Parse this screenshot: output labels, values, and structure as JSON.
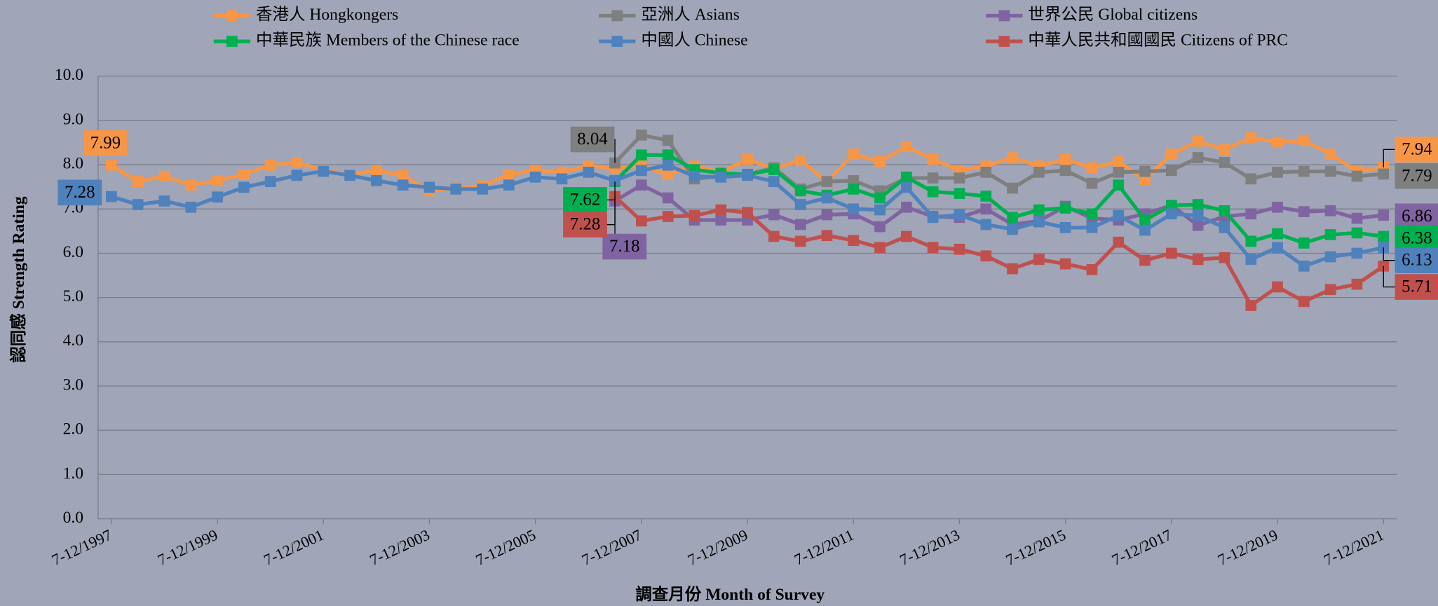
{
  "chart_data": {
    "type": "line",
    "x_label": "調查月份 Month of Survey",
    "y_label": "認同感 Strength Rating",
    "categories": [
      "7-12/1997",
      null,
      null,
      null,
      "7-12/1999",
      null,
      null,
      null,
      "7-12/2001",
      null,
      null,
      null,
      "7-12/2003",
      null,
      null,
      null,
      "7-12/2005",
      null,
      null,
      null,
      "7-12/2007",
      null,
      null,
      null,
      "7-12/2009",
      null,
      null,
      null,
      "7-12/2011",
      null,
      null,
      null,
      "7-12/2013",
      null,
      null,
      null,
      "7-12/2015",
      null,
      null,
      null,
      "7-12/2017",
      null,
      null,
      null,
      "7-12/2019",
      null,
      null,
      null,
      "7-12/2021"
    ],
    "ylim": [
      0,
      10
    ],
    "yticks": [
      {
        "value": 0,
        "label": "0.0"
      },
      {
        "value": 1,
        "label": "1.0"
      },
      {
        "value": 2,
        "label": "2.0"
      },
      {
        "value": 3,
        "label": "3.0"
      },
      {
        "value": 4,
        "label": "4.0"
      },
      {
        "value": 5,
        "label": "5.0"
      },
      {
        "value": 6,
        "label": "6.0"
      },
      {
        "value": 7,
        "label": "7.0"
      },
      {
        "value": 8,
        "label": "8.0"
      },
      {
        "value": 9,
        "label": "9.0"
      },
      {
        "value": 10,
        "label": "10.0"
      }
    ],
    "grid": true,
    "series": [
      {
        "name": "香港人 Hongkongers",
        "color": "#f79646",
        "values": [
          7.99,
          7.62,
          7.74,
          7.54,
          7.64,
          7.78,
          7.99,
          8.05,
          7.87,
          7.78,
          7.87,
          7.76,
          7.41,
          7.47,
          7.52,
          7.78,
          7.87,
          7.83,
          7.97,
          7.93,
          7.97,
          7.78,
          7.97,
          7.83,
          8.12,
          7.91,
          8.1,
          7.62,
          8.24,
          8.07,
          8.41,
          8.12,
          7.87,
          7.97,
          8.16,
          7.97,
          8.12,
          7.93,
          8.07,
          7.66,
          8.24,
          8.53,
          8.34,
          8.61,
          8.51,
          8.55,
          8.24,
          7.85,
          7.94
        ],
        "value_labels": [
          "7.99",
          null,
          null,
          null,
          null,
          null,
          null,
          null,
          null,
          null,
          null,
          null,
          null,
          null,
          null,
          null,
          null,
          null,
          null,
          null,
          null,
          null,
          null,
          null,
          null,
          null,
          null,
          null,
          null,
          null,
          null,
          null,
          null,
          null,
          null,
          null,
          null,
          null,
          null,
          null,
          null,
          null,
          null,
          null,
          null,
          null,
          null,
          null,
          "7.94"
        ]
      },
      {
        "name": "亞洲人 Asians",
        "color": "#7f7f7f",
        "values": [
          null,
          null,
          null,
          null,
          null,
          null,
          null,
          null,
          null,
          null,
          null,
          null,
          null,
          null,
          null,
          null,
          null,
          null,
          null,
          8.04,
          8.67,
          8.55,
          7.68,
          7.74,
          7.78,
          7.93,
          7.45,
          7.62,
          7.64,
          7.41,
          7.7,
          7.7,
          7.7,
          7.83,
          7.47,
          7.83,
          7.87,
          7.58,
          7.83,
          7.85,
          7.87,
          8.16,
          8.05,
          7.68,
          7.83,
          7.85,
          7.85,
          7.74,
          7.79
        ],
        "value_labels": [
          null,
          null,
          null,
          null,
          null,
          null,
          null,
          null,
          null,
          null,
          null,
          null,
          null,
          null,
          null,
          null,
          null,
          null,
          null,
          "8.04",
          null,
          null,
          null,
          null,
          null,
          null,
          null,
          null,
          null,
          null,
          null,
          null,
          null,
          null,
          null,
          null,
          null,
          null,
          null,
          null,
          null,
          null,
          null,
          null,
          null,
          null,
          null,
          null,
          "7.79"
        ]
      },
      {
        "name": "世界公民 Global citizens",
        "color": "#8064a2",
        "values": [
          null,
          null,
          null,
          null,
          null,
          null,
          null,
          null,
          null,
          null,
          null,
          null,
          null,
          null,
          null,
          null,
          null,
          null,
          null,
          7.18,
          7.54,
          7.25,
          6.75,
          6.75,
          6.75,
          6.87,
          6.65,
          6.87,
          6.89,
          6.6,
          7.04,
          6.83,
          6.81,
          7.0,
          6.65,
          6.73,
          7.06,
          6.79,
          6.75,
          6.89,
          7.08,
          6.63,
          6.83,
          6.89,
          7.04,
          6.94,
          6.96,
          6.79,
          6.86
        ],
        "value_labels": [
          null,
          null,
          null,
          null,
          null,
          null,
          null,
          null,
          null,
          null,
          null,
          null,
          null,
          null,
          null,
          null,
          null,
          null,
          null,
          "7.18",
          null,
          null,
          null,
          null,
          null,
          null,
          null,
          null,
          null,
          null,
          null,
          null,
          null,
          null,
          null,
          null,
          null,
          null,
          null,
          null,
          null,
          null,
          null,
          null,
          null,
          null,
          null,
          null,
          "6.86"
        ]
      },
      {
        "name": "中華民族 Members of the Chinese race",
        "color": "#00b050",
        "values": [
          null,
          null,
          null,
          null,
          null,
          null,
          null,
          null,
          null,
          null,
          null,
          null,
          null,
          null,
          null,
          null,
          null,
          null,
          null,
          7.62,
          8.22,
          8.22,
          7.89,
          7.81,
          7.78,
          7.89,
          7.41,
          7.31,
          7.45,
          7.25,
          7.72,
          7.39,
          7.35,
          7.29,
          6.81,
          6.98,
          7.02,
          6.89,
          7.54,
          6.75,
          7.08,
          7.1,
          6.96,
          6.27,
          6.44,
          6.23,
          6.42,
          6.46,
          6.38
        ],
        "value_labels": [
          null,
          null,
          null,
          null,
          null,
          null,
          null,
          null,
          null,
          null,
          null,
          null,
          null,
          null,
          null,
          null,
          null,
          null,
          null,
          "7.62",
          null,
          null,
          null,
          null,
          null,
          null,
          null,
          null,
          null,
          null,
          null,
          null,
          null,
          null,
          null,
          null,
          null,
          null,
          null,
          null,
          null,
          null,
          null,
          null,
          null,
          null,
          null,
          null,
          "6.38"
        ]
      },
      {
        "name": "中國人 Chinese",
        "color": "#4f81bd",
        "values": [
          7.28,
          7.1,
          7.18,
          7.04,
          7.27,
          7.49,
          7.62,
          7.76,
          7.85,
          7.76,
          7.64,
          7.54,
          7.49,
          7.45,
          7.45,
          7.54,
          7.72,
          7.68,
          7.83,
          7.64,
          7.87,
          7.99,
          7.74,
          7.72,
          7.76,
          7.62,
          7.1,
          7.25,
          7.0,
          6.98,
          7.49,
          6.81,
          6.87,
          6.65,
          6.54,
          6.71,
          6.58,
          6.58,
          6.85,
          6.52,
          6.89,
          6.85,
          6.58,
          5.86,
          6.13,
          5.71,
          5.92,
          6.0,
          6.13
        ],
        "value_labels": [
          "7.28",
          null,
          null,
          null,
          null,
          null,
          null,
          null,
          null,
          null,
          null,
          null,
          null,
          null,
          null,
          null,
          null,
          null,
          null,
          null,
          null,
          null,
          null,
          null,
          null,
          null,
          null,
          null,
          null,
          null,
          null,
          null,
          null,
          null,
          null,
          null,
          null,
          null,
          null,
          null,
          null,
          null,
          null,
          null,
          null,
          null,
          null,
          null,
          "6.13"
        ]
      },
      {
        "name": "中華人民共和國國民 Citizens of PRC",
        "color": "#c0504d",
        "values": [
          null,
          null,
          null,
          null,
          null,
          null,
          null,
          null,
          null,
          null,
          null,
          null,
          null,
          null,
          null,
          null,
          null,
          null,
          null,
          7.28,
          6.73,
          6.83,
          6.85,
          6.98,
          6.92,
          6.38,
          6.27,
          6.4,
          6.29,
          6.13,
          6.38,
          6.13,
          6.09,
          5.94,
          5.65,
          5.86,
          5.76,
          5.63,
          6.25,
          5.84,
          6.0,
          5.86,
          5.9,
          4.82,
          5.24,
          4.91,
          5.18,
          5.3,
          5.71
        ],
        "value_labels": [
          null,
          null,
          null,
          null,
          null,
          null,
          null,
          null,
          null,
          null,
          null,
          null,
          null,
          null,
          null,
          null,
          null,
          null,
          null,
          "7.28",
          null,
          null,
          null,
          null,
          null,
          null,
          null,
          null,
          null,
          null,
          null,
          null,
          null,
          null,
          null,
          null,
          null,
          null,
          null,
          null,
          null,
          null,
          null,
          null,
          null,
          null,
          null,
          null,
          "5.71"
        ]
      }
    ]
  }
}
